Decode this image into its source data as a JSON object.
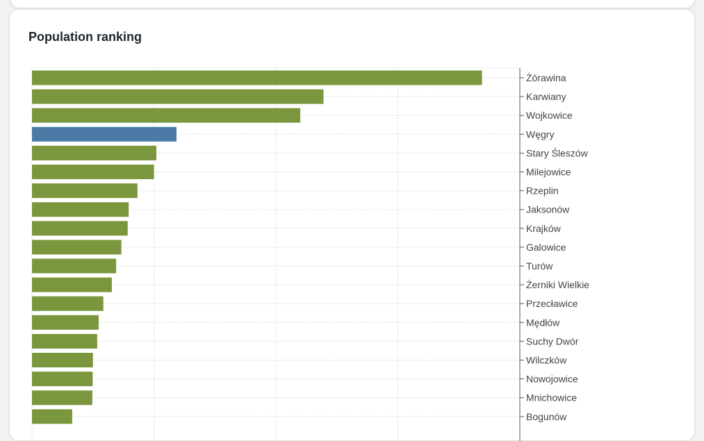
{
  "card": {
    "title": "Population ranking"
  },
  "chart_data": {
    "type": "bar",
    "orientation": "horizontal",
    "title": "Population ranking",
    "grid": true,
    "highlight_color": "#4a7aa5",
    "bar_color": "#7b973e",
    "highlight_category": "Węgry",
    "xlim": [
      0,
      4000
    ],
    "categories": [
      "Żórawina",
      "Karwiany",
      "Wojkowice",
      "Węgry",
      "Stary Śleszów",
      "Milejowice",
      "Rzeplin",
      "Jaksonów",
      "Krajków",
      "Galowice",
      "Turów",
      "Żerniki Wielkie",
      "Przecławice",
      "Mędłów",
      "Suchy Dwór",
      "Wilczków",
      "Nowojowice",
      "Mnichowice",
      "Bogunów"
    ],
    "values": [
      3690,
      2390,
      2200,
      1185,
      1020,
      1000,
      865,
      793,
      785,
      733,
      690,
      655,
      585,
      547,
      535,
      500,
      498,
      495,
      330
    ]
  }
}
